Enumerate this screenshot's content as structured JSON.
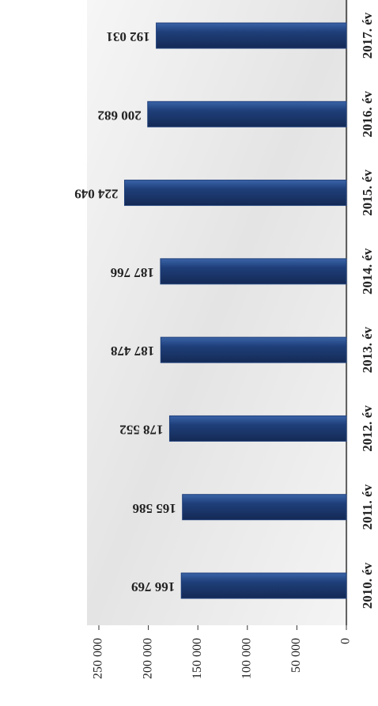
{
  "chart_data": {
    "type": "bar",
    "categories": [
      "2010. év",
      "2011. év",
      "2012. év",
      "2013. év",
      "2014. év",
      "2015. év",
      "2016. év",
      "2017. év"
    ],
    "values": [
      166769,
      165586,
      178552,
      187478,
      187766,
      224049,
      200682,
      192031
    ],
    "value_labels": [
      "166 769",
      "165 586",
      "178 552",
      "187 478",
      "187 766",
      "224 049",
      "200 682",
      "192 031"
    ],
    "color": "#1f3f7a",
    "ylim": [
      0,
      250000
    ],
    "yticks": [
      0,
      {
        "value": 50000,
        "label": "50 000"
      },
      {
        "value": 100000,
        "label": "100 000"
      },
      {
        "value": 150000,
        "label": "150 000"
      },
      {
        "value": 200000,
        "label": "200 000"
      },
      {
        "value": 250000,
        "label": "250 000"
      }
    ]
  }
}
